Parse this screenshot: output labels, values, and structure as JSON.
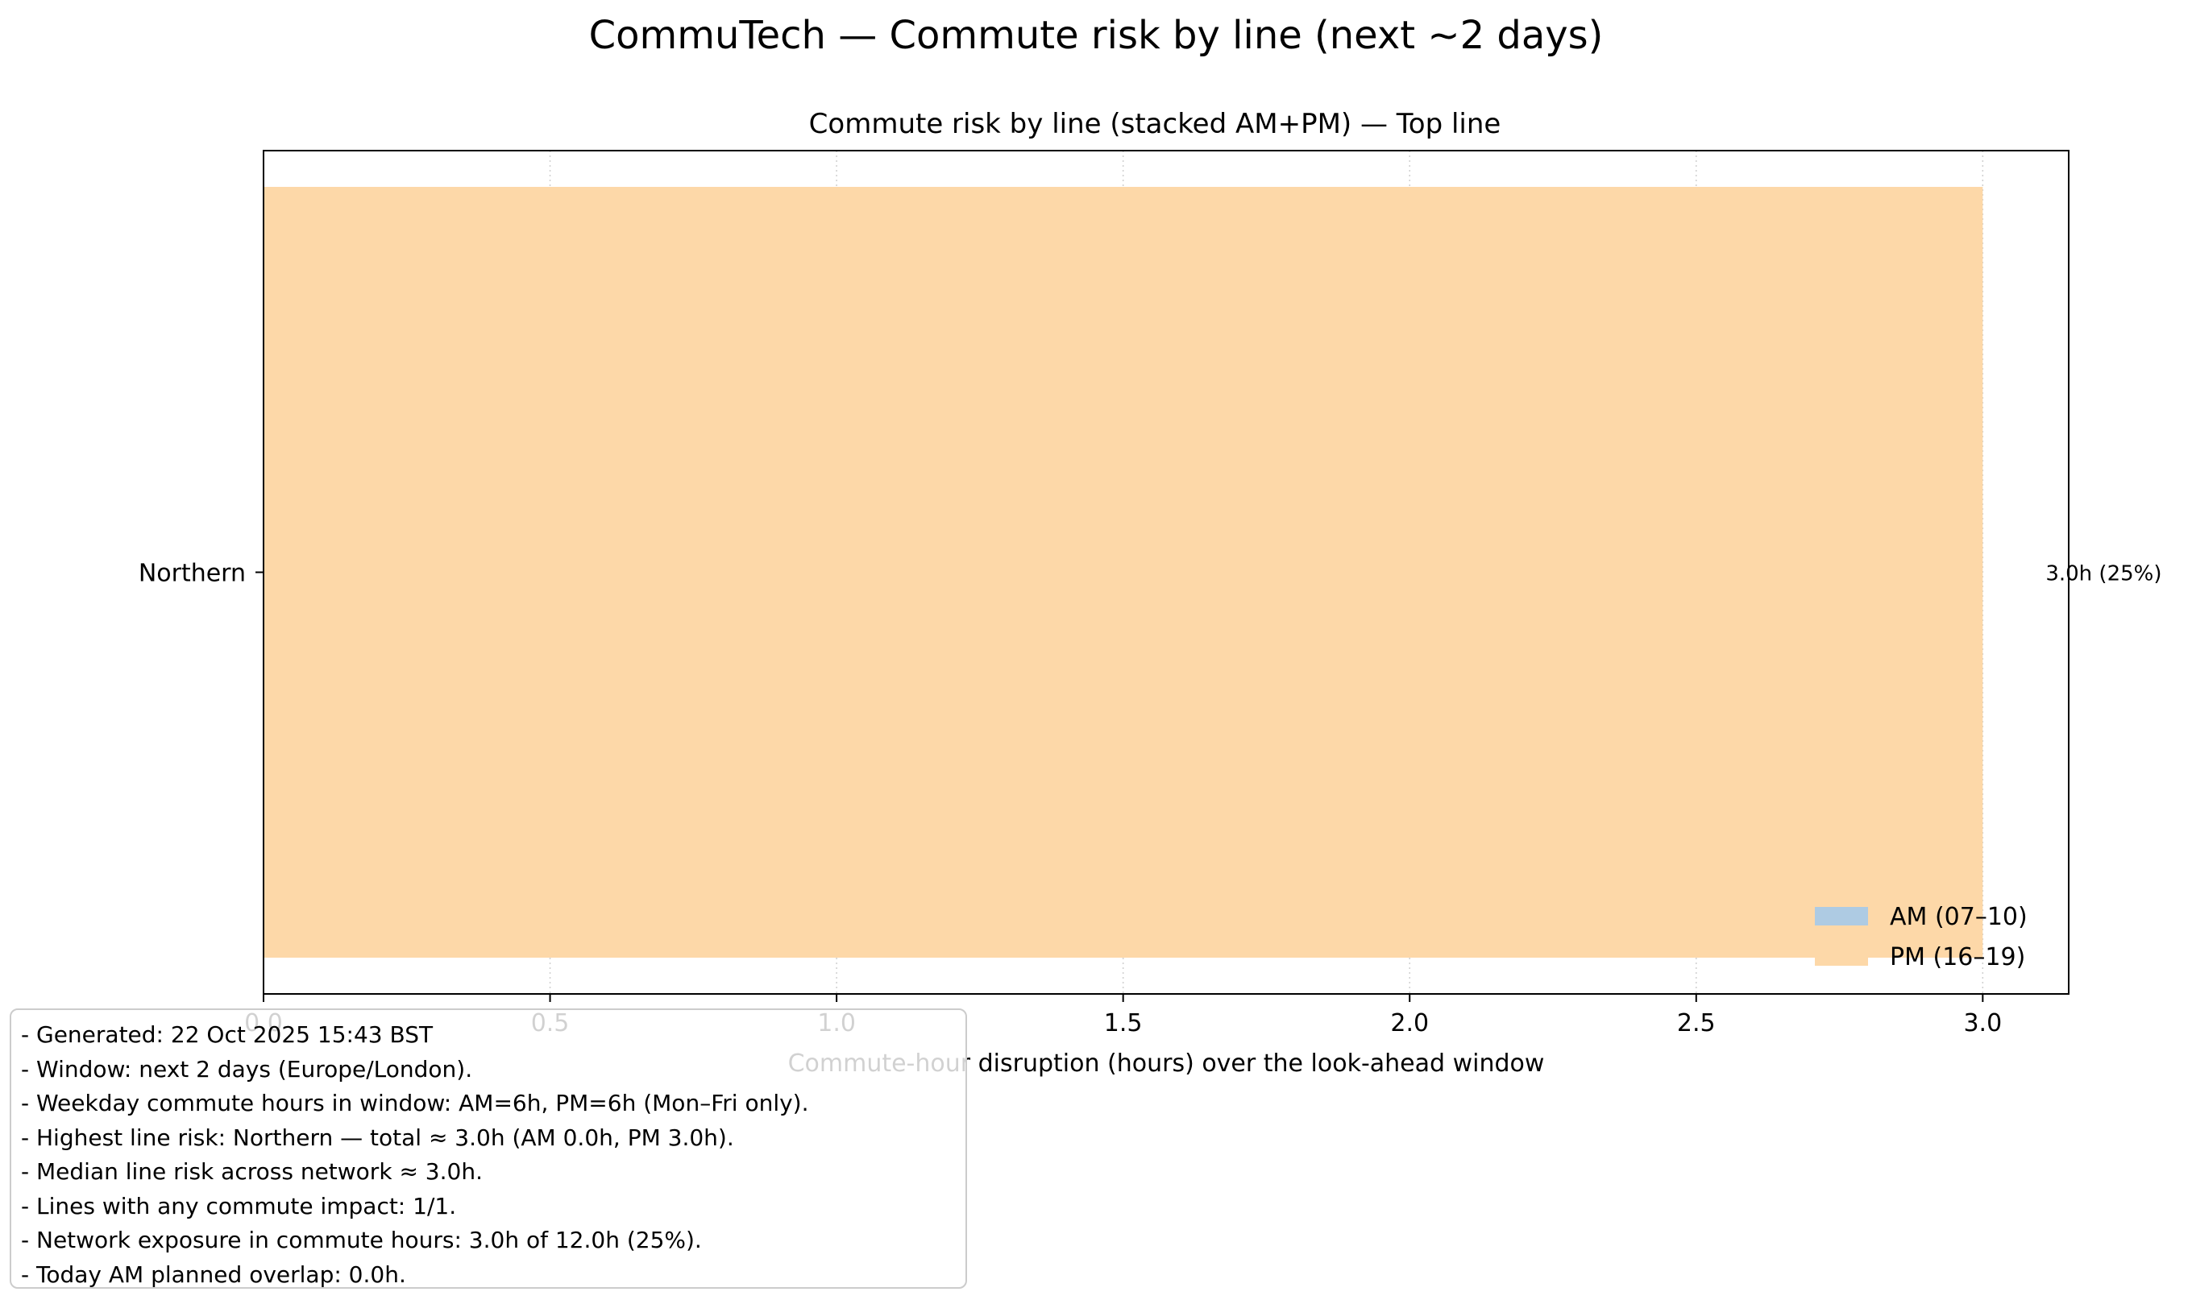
{
  "figure": {
    "suptitle": "CommuTech — Commute risk by line (next ~2 days)"
  },
  "chart_data": {
    "type": "bar",
    "orientation": "horizontal",
    "stacked": true,
    "title": "Commute risk by line (stacked AM+PM) — Top line",
    "xlabel": "Commute-hour disruption (hours) over the look-ahead window",
    "ylabel": "",
    "categories": [
      "Northern"
    ],
    "series": [
      {
        "name": "AM (07–10)",
        "values": [
          0.0
        ],
        "color": "#aecbe3"
      },
      {
        "name": "PM (16–19)",
        "values": [
          3.0
        ],
        "color": "#fdd8a8"
      }
    ],
    "bar_labels": [
      "3.0h (25%)"
    ],
    "xlim": [
      0,
      3.15
    ],
    "xticks": [
      0.0,
      0.5,
      1.0,
      1.5,
      2.0,
      2.5,
      3.0
    ],
    "xtick_labels": [
      "0.0",
      "0.5",
      "1.0",
      "1.5",
      "2.0",
      "2.5",
      "3.0"
    ],
    "grid": "x, dotted",
    "legend_position": "lower right"
  },
  "notes": [
    "- Generated: 22 Oct 2025 15:43 BST",
    "- Window: next 2 days (Europe/London).",
    "- Weekday commute hours in window: AM=6h, PM=6h (Mon–Fri only).",
    "- Highest line risk: Northern — total ≈ 3.0h (AM 0.0h, PM 3.0h).",
    "- Median line risk across network ≈ 3.0h.",
    "- Lines with any commute impact: 1/1.",
    "- Network exposure in commute hours: 3.0h of 12.0h (25%).",
    "- Today AM planned overlap: 0.0h."
  ]
}
